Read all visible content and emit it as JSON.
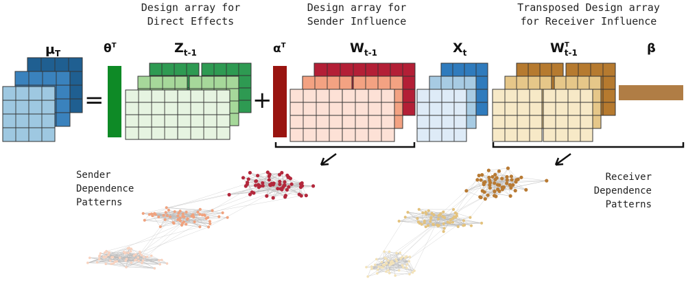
{
  "captions": {
    "direct": [
      "Design array for",
      "Direct Effects"
    ],
    "sender": [
      "Design array for",
      "Sender Influence"
    ],
    "receiver": [
      "Transposed Design array",
      "for Receiver Influence"
    ],
    "sender_patterns": [
      "Sender",
      "Dependence",
      "Patterns"
    ],
    "receiver_patterns": [
      "Receiver",
      "Dependence",
      "Patterns"
    ]
  },
  "symbols": {
    "mu": "μ",
    "mu_sub": "T",
    "theta": "θ",
    "theta_sup": "T",
    "z": "Z",
    "z_sub": "t-1",
    "alpha": "α",
    "alpha_sup": "T",
    "w": "W",
    "w_sub": "t-1",
    "x": "X",
    "x_sub": "t",
    "wt": "W",
    "wt_sup": "T",
    "wt_sub": "t-1",
    "beta": "β",
    "equals": "=",
    "plus": "+"
  },
  "colors": {
    "mu": [
      "#1f5f91",
      "#3a82bd",
      "#9ec8e1"
    ],
    "theta": "#0e8a26",
    "z": [
      "#2e9a52",
      "#a6d89a",
      "#e6f4e1"
    ],
    "alpha": "#991410",
    "w": [
      "#b31f36",
      "#f3a282",
      "#fde1d6"
    ],
    "x": [
      "#2f7bbd",
      "#a7cbe3",
      "#deebf7"
    ],
    "wt": [
      "#b67a2f",
      "#e6c789",
      "#f7e9c7"
    ],
    "beta": "#b07d45",
    "net_sender": [
      "#b3283c",
      "#f0a27e",
      "#f8d2bf"
    ],
    "net_receiver": [
      "#b87a33",
      "#e3c27e",
      "#f3e2b8"
    ],
    "edge": "#b9b9b9"
  }
}
